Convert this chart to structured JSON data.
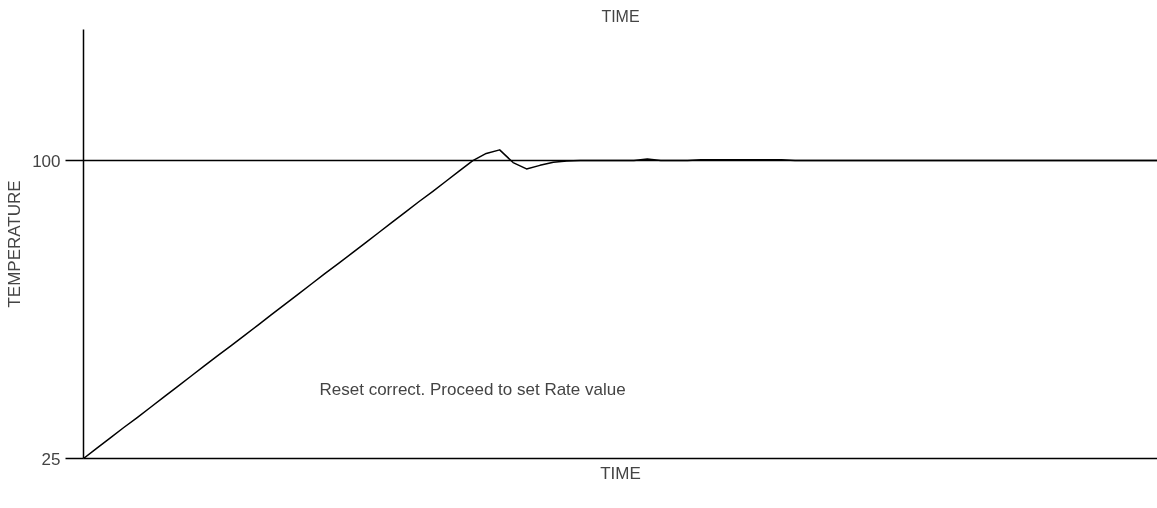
{
  "chart_data": {
    "type": "line",
    "title": "TIME",
    "xlabel": "TIME",
    "ylabel": "TEMPERATURE",
    "categories": [
      null,
      null,
      null,
      null,
      null,
      null,
      null,
      null,
      null,
      null,
      null,
      null,
      null,
      null,
      null,
      null,
      null,
      null,
      null,
      null,
      null,
      null,
      null,
      null,
      null,
      null,
      null,
      null,
      null,
      null,
      null,
      null,
      null,
      null,
      null,
      null,
      null,
      null,
      null,
      null,
      null,
      null,
      null,
      null,
      null,
      null,
      null,
      null,
      null,
      null,
      null,
      null,
      null,
      null,
      null,
      null,
      null,
      null,
      null,
      null,
      null,
      null,
      null,
      null,
      null,
      null,
      null,
      null,
      null,
      null,
      null,
      null,
      null,
      null,
      null,
      null,
      null,
      null,
      null,
      null,
      null
    ],
    "series": [
      {
        "color": "#000000",
        "values": [
          25,
          27.6,
          30.2,
          32.8,
          35.3,
          37.9,
          40.5,
          43.1,
          45.7,
          48.3,
          50.9,
          53.4,
          56,
          58.6,
          61.2,
          63.8,
          66.4,
          69,
          71.6,
          74.1,
          76.7,
          79.3,
          81.9,
          84.5,
          87.1,
          89.7,
          92.2,
          94.8,
          97.4,
          100,
          101.8,
          102.7,
          99.5,
          97.9,
          98.8,
          99.6,
          99.9,
          100,
          100,
          100,
          100,
          100,
          100.4,
          100,
          100,
          100,
          100.2,
          100.2,
          100.2,
          100.2,
          100.2,
          100.2,
          100.2,
          100,
          100,
          100,
          100,
          100,
          100,
          100,
          100,
          100,
          100,
          100,
          100,
          100,
          100,
          100,
          100,
          100,
          100,
          100,
          100,
          100,
          100,
          100,
          100,
          100,
          100,
          100,
          100
        ]
      }
    ],
    "ylim": [
      25,
      133
    ],
    "yticks": [
      25,
      100
    ],
    "tick_labels": "y",
    "marker": "none",
    "line_style": "solid",
    "ref_lines": [
      {
        "axis": "y",
        "value": 100,
        "color": "#000000"
      }
    ],
    "annotations": [
      "Reset correct. Proceed to set Rate value"
    ]
  }
}
